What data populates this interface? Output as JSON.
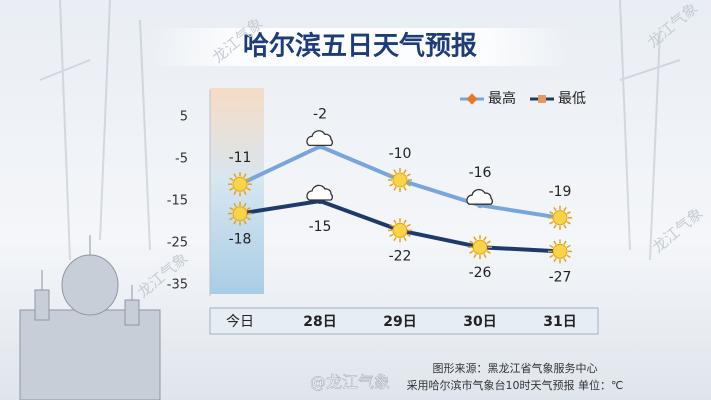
{
  "chart_data": {
    "type": "line",
    "title": "哈尔滨五日天气预报",
    "categories": [
      "今日",
      "28日",
      "29日",
      "30日",
      "31日"
    ],
    "series": [
      {
        "name": "最高",
        "color": "#78a6dc",
        "marker_color": "#e07b2a",
        "values": [
          -11,
          -2,
          -10,
          -16,
          -19
        ]
      },
      {
        "name": "最低",
        "color": "#1f3a6a",
        "marker_color": "#e09a5a",
        "values": [
          -18,
          -15,
          -22,
          -26,
          -27
        ]
      }
    ],
    "ylim": [
      -35,
      5
    ],
    "yticks": [
      5,
      -5,
      -15,
      -25,
      -35
    ],
    "grid": false,
    "legend": "top-right",
    "source": "图形来源：黑龙江省气象服务中心",
    "note": "采用哈尔滨市气象台10时天气预报 单位：℃",
    "credit": "@龙江气象",
    "watermark": "龙江气象"
  }
}
